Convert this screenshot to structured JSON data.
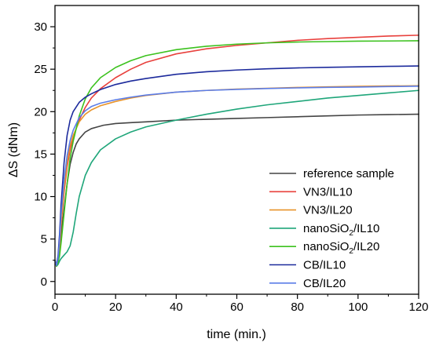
{
  "chart_data": {
    "type": "line",
    "title": "",
    "xlabel": "time (min.)",
    "ylabel": "ΔS (dNm)",
    "xlim": [
      0,
      120
    ],
    "ylim": [
      -1.5,
      32.5
    ],
    "xticks": [
      0,
      20,
      40,
      60,
      80,
      100,
      120
    ],
    "yticks": [
      0,
      5,
      10,
      15,
      20,
      25,
      30
    ],
    "grid": false,
    "legend_position": "bottom-right",
    "series": [
      {
        "name": "reference sample",
        "color": "#444444",
        "x": [
          0,
          0.5,
          1,
          1.5,
          2,
          3,
          4,
          5,
          6,
          7,
          8,
          10,
          12,
          14,
          16,
          20,
          25,
          30,
          40,
          50,
          60,
          70,
          80,
          90,
          100,
          110,
          120
        ],
        "y": [
          2.5,
          2.0,
          2.3,
          3.5,
          5.5,
          8.5,
          11.5,
          13.8,
          15.2,
          16.2,
          16.8,
          17.6,
          18.0,
          18.2,
          18.4,
          18.6,
          18.7,
          18.8,
          19.0,
          19.1,
          19.2,
          19.3,
          19.4,
          19.5,
          19.6,
          19.65,
          19.7
        ]
      },
      {
        "name": "VN3/IL10",
        "color": "#e8403c",
        "x": [
          0,
          0.5,
          1,
          1.5,
          2,
          3,
          4,
          5,
          6,
          8,
          10,
          12,
          15,
          20,
          25,
          30,
          40,
          50,
          60,
          70,
          80,
          90,
          100,
          110,
          120
        ],
        "y": [
          2.5,
          1.8,
          2.5,
          4.0,
          6.5,
          10.5,
          13.5,
          15.5,
          17.0,
          19.0,
          20.5,
          21.6,
          22.7,
          24.0,
          25.0,
          25.8,
          26.8,
          27.4,
          27.8,
          28.1,
          28.4,
          28.6,
          28.75,
          28.9,
          29.0
        ]
      },
      {
        "name": "VN3/IL20",
        "color": "#e8932a",
        "x": [
          0,
          0.5,
          1,
          1.5,
          2,
          3,
          4,
          5,
          6,
          8,
          10,
          12,
          15,
          20,
          25,
          30,
          40,
          50,
          60,
          70,
          80,
          90,
          100,
          110,
          120
        ],
        "y": [
          2.5,
          1.9,
          2.6,
          4.2,
          6.8,
          11.0,
          14.0,
          16.0,
          17.2,
          18.8,
          19.7,
          20.2,
          20.7,
          21.2,
          21.6,
          21.9,
          22.3,
          22.5,
          22.65,
          22.75,
          22.85,
          22.92,
          22.98,
          23.02,
          23.05
        ]
      },
      {
        "name": "nanoSiO2/IL10",
        "color": "#1fa67a",
        "x": [
          0,
          0.5,
          1,
          1.5,
          2,
          3,
          4,
          5,
          6,
          7,
          8,
          10,
          12,
          15,
          20,
          25,
          30,
          40,
          50,
          60,
          70,
          80,
          90,
          100,
          110,
          120
        ],
        "y": [
          2.5,
          1.8,
          2.0,
          2.4,
          2.7,
          3.1,
          3.5,
          4.2,
          5.8,
          8.0,
          10.0,
          12.5,
          14.0,
          15.5,
          16.8,
          17.6,
          18.2,
          19.0,
          19.7,
          20.3,
          20.8,
          21.2,
          21.6,
          21.9,
          22.2,
          22.5
        ]
      },
      {
        "name": "nanoSiO2/IL20",
        "color": "#3cc21e",
        "x": [
          0,
          0.5,
          1,
          1.5,
          2,
          3,
          4,
          5,
          6,
          8,
          10,
          12,
          15,
          20,
          25,
          30,
          40,
          50,
          60,
          70,
          80,
          90,
          100,
          110,
          120
        ],
        "y": [
          2.5,
          1.8,
          2.2,
          3.0,
          4.5,
          8.0,
          11.5,
          14.5,
          16.5,
          19.5,
          21.5,
          22.8,
          24.0,
          25.2,
          26.0,
          26.6,
          27.3,
          27.7,
          27.95,
          28.1,
          28.2,
          28.25,
          28.3,
          28.32,
          28.35
        ]
      },
      {
        "name": "CB/IL10",
        "color": "#1c2a9c",
        "x": [
          0,
          0.5,
          1,
          1.5,
          2,
          3,
          4,
          5,
          6,
          8,
          10,
          12,
          15,
          20,
          25,
          30,
          40,
          50,
          60,
          70,
          80,
          90,
          100,
          110,
          120
        ],
        "y": [
          2.5,
          1.9,
          3.0,
          5.5,
          9.0,
          14.0,
          17.2,
          19.0,
          20.0,
          21.1,
          21.7,
          22.1,
          22.6,
          23.2,
          23.6,
          23.9,
          24.4,
          24.7,
          24.9,
          25.05,
          25.15,
          25.22,
          25.28,
          25.33,
          25.38
        ]
      },
      {
        "name": "CB/IL20",
        "color": "#5b7de8",
        "x": [
          0,
          0.5,
          1,
          1.5,
          2,
          3,
          4,
          5,
          6,
          8,
          10,
          12,
          15,
          20,
          25,
          30,
          40,
          50,
          60,
          70,
          80,
          90,
          100,
          110,
          120
        ],
        "y": [
          2.5,
          1.9,
          2.7,
          4.8,
          7.8,
          12.0,
          14.8,
          16.6,
          17.8,
          19.3,
          20.1,
          20.6,
          21.0,
          21.4,
          21.7,
          21.95,
          22.3,
          22.5,
          22.62,
          22.72,
          22.8,
          22.86,
          22.9,
          22.95,
          23.0
        ]
      }
    ]
  }
}
